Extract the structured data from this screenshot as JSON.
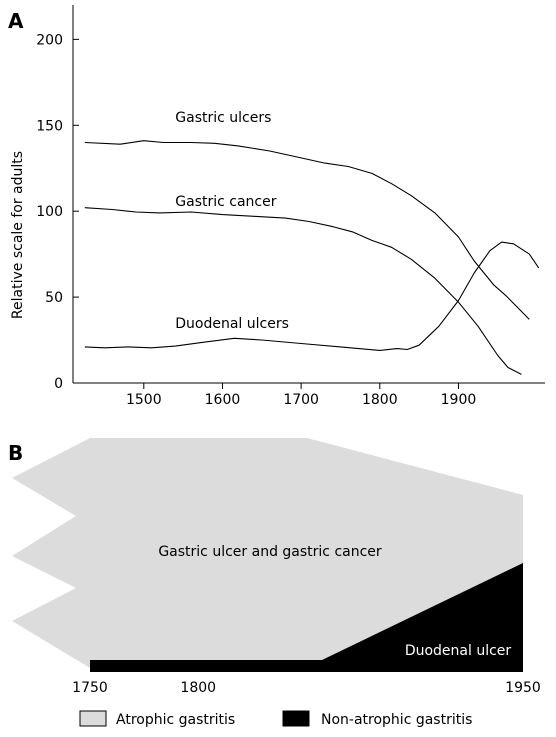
{
  "chart_data": [
    {
      "panel": "A",
      "type": "line",
      "title": "",
      "xlabel": "",
      "ylabel": "Relative scale for adults",
      "xlim": [
        1410,
        2010
      ],
      "ylim": [
        0,
        220
      ],
      "xticks": [
        1500,
        1600,
        1700,
        1800,
        1900
      ],
      "yticks": [
        0,
        50,
        100,
        150,
        200
      ],
      "grid": false,
      "series": [
        {
          "name": "Gastric ulcers",
          "label_at": [
            1540,
            152
          ],
          "points": [
            [
              1425,
              140
            ],
            [
              1470,
              139
            ],
            [
              1500,
              141
            ],
            [
              1525,
              140
            ],
            [
              1560,
              140
            ],
            [
              1590,
              139.5
            ],
            [
              1620,
              138
            ],
            [
              1660,
              135
            ],
            [
              1700,
              131
            ],
            [
              1730,
              128
            ],
            [
              1760,
              126
            ],
            [
              1790,
              122
            ],
            [
              1815,
              116
            ],
            [
              1840,
              109
            ],
            [
              1870,
              99
            ],
            [
              1900,
              85
            ],
            [
              1920,
              71
            ],
            [
              1945,
              57
            ],
            [
              1960,
              51
            ],
            [
              1990,
              37
            ]
          ]
        },
        {
          "name": "Gastric cancer",
          "label_at": [
            1540,
            103
          ],
          "points": [
            [
              1425,
              102
            ],
            [
              1460,
              101
            ],
            [
              1490,
              99.5
            ],
            [
              1520,
              99
            ],
            [
              1560,
              99.5
            ],
            [
              1600,
              98
            ],
            [
              1640,
              97
            ],
            [
              1680,
              96
            ],
            [
              1710,
              94
            ],
            [
              1740,
              91
            ],
            [
              1765,
              88
            ],
            [
              1790,
              83
            ],
            [
              1815,
              79
            ],
            [
              1840,
              72
            ],
            [
              1870,
              61
            ],
            [
              1900,
              47
            ],
            [
              1925,
              33
            ],
            [
              1950,
              16
            ],
            [
              1963,
              9
            ],
            [
              1980,
              5
            ]
          ]
        },
        {
          "name": "Duodenal ulcers",
          "label_at": [
            1540,
            32
          ],
          "points": [
            [
              1425,
              21
            ],
            [
              1450,
              20.5
            ],
            [
              1480,
              21
            ],
            [
              1510,
              20.5
            ],
            [
              1540,
              21.5
            ],
            [
              1580,
              24
            ],
            [
              1615,
              26
            ],
            [
              1650,
              25
            ],
            [
              1700,
              23
            ],
            [
              1750,
              21
            ],
            [
              1800,
              19
            ],
            [
              1822,
              20
            ],
            [
              1835,
              19.5
            ],
            [
              1850,
              22
            ],
            [
              1875,
              33
            ],
            [
              1900,
              48
            ],
            [
              1920,
              64
            ],
            [
              1940,
              77
            ],
            [
              1955,
              82
            ],
            [
              1970,
              81
            ],
            [
              1990,
              75
            ],
            [
              2002,
              67
            ]
          ]
        }
      ]
    },
    {
      "panel": "B",
      "type": "area",
      "title": "",
      "xlim": [
        1750,
        1950
      ],
      "xticks": [
        1750,
        1800,
        1950
      ],
      "regions": [
        {
          "name": "Atrophic gastritis",
          "label": "Gastric ulcer and gastric cancer",
          "color": "#dcdcdc"
        },
        {
          "name": "Non-atrophic gastritis",
          "label": "Duodenal ulcer",
          "color": "#000000"
        }
      ],
      "legend": [
        "Atrophic gastritis",
        "Non-atrophic gastritis"
      ],
      "legend_position": "bottom"
    }
  ]
}
